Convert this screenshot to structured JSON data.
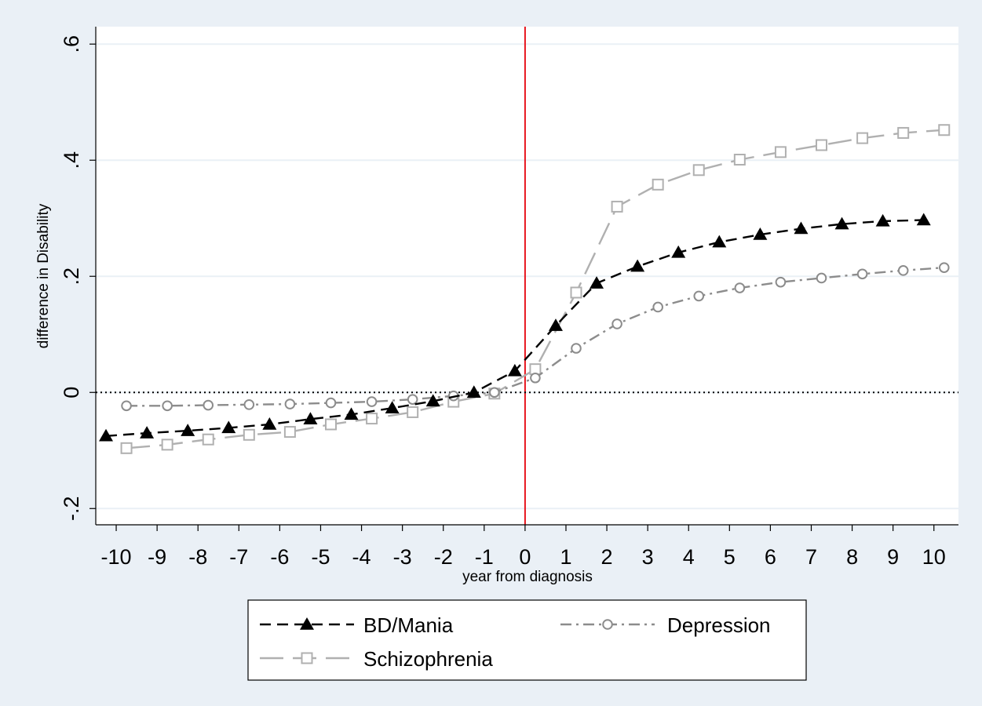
{
  "chart_data": {
    "type": "line",
    "xlabel": "year from diagnosis",
    "ylabel": "difference in Disability",
    "xlim": [
      -10.5,
      10.6
    ],
    "ylim": [
      -0.228,
      0.63
    ],
    "x_ticks": [
      "-10",
      "-9",
      "-8",
      "-7",
      "-6",
      "-5",
      "-4",
      "-3",
      "-2",
      "-1",
      "0",
      "1",
      "2",
      "3",
      "4",
      "5",
      "6",
      "7",
      "8",
      "9",
      "10"
    ],
    "y_ticks": [
      {
        "value": -0.2,
        "label": "-.2"
      },
      {
        "value": 0,
        "label": "0"
      },
      {
        "value": 0.2,
        "label": ".2"
      },
      {
        "value": 0.4,
        "label": ".4"
      },
      {
        "value": 0.6,
        "label": ".6"
      }
    ],
    "grid": true,
    "reference_lines": [
      {
        "axis": "x",
        "value": 0,
        "color": "#e8141c",
        "style": "solid"
      },
      {
        "axis": "y",
        "value": 0,
        "color": "#000000",
        "style": "dotted"
      }
    ],
    "legend_position": "bottom",
    "series": [
      {
        "name": "BD/Mania",
        "color": "#000000",
        "dash": "dashed",
        "marker": "triangle",
        "x": [
          -10.25,
          -9.25,
          -8.25,
          -7.25,
          -6.25,
          -5.25,
          -4.25,
          -3.25,
          -2.25,
          -1.25,
          -0.25,
          0.75,
          1.75,
          2.75,
          3.75,
          4.75,
          5.75,
          6.75,
          7.75,
          8.75,
          9.75
        ],
        "values": [
          -0.075,
          -0.07,
          -0.066,
          -0.061,
          -0.055,
          -0.046,
          -0.038,
          -0.027,
          -0.015,
          0.0,
          0.037,
          0.115,
          0.188,
          0.217,
          0.241,
          0.259,
          0.272,
          0.282,
          0.29,
          0.295,
          0.297
        ]
      },
      {
        "name": "Depression",
        "color": "#8c8c8c",
        "dash": "dash-dot",
        "marker": "circle",
        "x": [
          -9.75,
          -8.75,
          -7.75,
          -6.75,
          -5.75,
          -4.75,
          -3.75,
          -2.75,
          -1.75,
          -0.75,
          0.25,
          1.25,
          2.25,
          3.25,
          4.25,
          5.25,
          6.25,
          7.25,
          8.25,
          9.25,
          10.25
        ],
        "values": [
          -0.023,
          -0.023,
          -0.022,
          -0.021,
          -0.02,
          -0.018,
          -0.016,
          -0.012,
          -0.006,
          0.0,
          0.025,
          0.076,
          0.118,
          0.147,
          0.166,
          0.18,
          0.19,
          0.197,
          0.204,
          0.21,
          0.215
        ]
      },
      {
        "name": "Schizophrenia",
        "color": "#b0b0b0",
        "dash": "long-dash",
        "marker": "square",
        "x": [
          -9.75,
          -8.75,
          -7.75,
          -6.75,
          -5.75,
          -4.75,
          -3.75,
          -2.75,
          -1.75,
          -0.75,
          0.25,
          1.25,
          2.25,
          3.25,
          4.25,
          5.25,
          6.25,
          7.25,
          8.25,
          9.25,
          10.25
        ],
        "values": [
          -0.096,
          -0.09,
          -0.081,
          -0.073,
          -0.068,
          -0.055,
          -0.045,
          -0.034,
          -0.016,
          -0.002,
          0.04,
          0.172,
          0.32,
          0.358,
          0.383,
          0.401,
          0.414,
          0.426,
          0.438,
          0.447,
          0.452
        ]
      }
    ]
  }
}
